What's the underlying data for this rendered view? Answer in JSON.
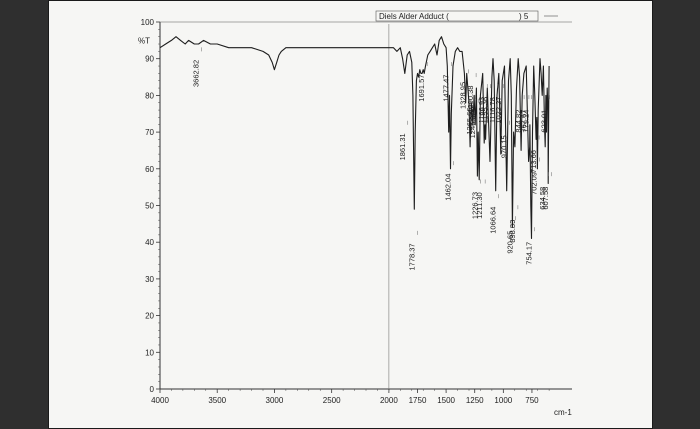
{
  "chart_data": {
    "type": "line",
    "title": "",
    "legend": {
      "label": "Diels Alder Adduct (",
      "suffix": ") 5",
      "placement": "top-right"
    },
    "xlabel": "cm-1",
    "ylabel": "%T",
    "xlim": [
      4000,
      400
    ],
    "ylim": [
      0,
      100
    ],
    "x_ticks": [
      4000,
      3500,
      3000,
      2500,
      2000,
      1750,
      1500,
      1250,
      1000,
      750
    ],
    "y_ticks": [
      100,
      90,
      80,
      70,
      60,
      50,
      40,
      30,
      20,
      10,
      0
    ],
    "x_tick_labels": [
      "4000",
      "3500",
      "3000",
      "2500",
      "2000",
      "1750",
      "1500",
      "1250",
      "1000",
      "750"
    ],
    "y_tick_labels": [
      "100",
      "90",
      "80",
      "70",
      "60",
      "50",
      "40",
      "30",
      "20",
      "10",
      "0"
    ],
    "spectrum": [
      [
        4000,
        93
      ],
      [
        3950,
        94
      ],
      [
        3900,
        95
      ],
      [
        3860,
        96
      ],
      [
        3820,
        95
      ],
      [
        3780,
        94
      ],
      [
        3750,
        95
      ],
      [
        3700,
        94
      ],
      [
        3662.82,
        94
      ],
      [
        3620,
        95
      ],
      [
        3560,
        94
      ],
      [
        3500,
        94
      ],
      [
        3400,
        93
      ],
      [
        3300,
        93
      ],
      [
        3200,
        93
      ],
      [
        3100,
        92
      ],
      [
        3050,
        91
      ],
      [
        3020,
        89
      ],
      [
        3000,
        87
      ],
      [
        2980,
        89
      ],
      [
        2960,
        91
      ],
      [
        2940,
        92
      ],
      [
        2900,
        93
      ],
      [
        2850,
        93
      ],
      [
        2800,
        93
      ],
      [
        2700,
        93
      ],
      [
        2600,
        93
      ],
      [
        2500,
        93
      ],
      [
        2400,
        93
      ],
      [
        2300,
        93
      ],
      [
        2200,
        93
      ],
      [
        2100,
        93
      ],
      [
        2050,
        93
      ],
      [
        2000,
        93
      ],
      [
        1960,
        93
      ],
      [
        1930,
        92
      ],
      [
        1900,
        93
      ],
      [
        1880,
        90
      ],
      [
        1861.31,
        86
      ],
      [
        1840,
        91
      ],
      [
        1820,
        92
      ],
      [
        1800,
        89
      ],
      [
        1790,
        80
      ],
      [
        1778.37,
        49
      ],
      [
        1770,
        70
      ],
      [
        1760,
        84
      ],
      [
        1750,
        86
      ],
      [
        1740,
        85
      ],
      [
        1730,
        87
      ],
      [
        1720,
        86
      ],
      [
        1710,
        86
      ],
      [
        1700,
        87
      ],
      [
        1691.57,
        86
      ],
      [
        1680,
        88
      ],
      [
        1660,
        91
      ],
      [
        1640,
        92
      ],
      [
        1620,
        93
      ],
      [
        1600,
        94
      ],
      [
        1580,
        91
      ],
      [
        1560,
        95
      ],
      [
        1540,
        96
      ],
      [
        1520,
        94
      ],
      [
        1500,
        93
      ],
      [
        1490,
        88
      ],
      [
        1477.47,
        70
      ],
      [
        1470,
        80
      ],
      [
        1462.04,
        60
      ],
      [
        1455,
        75
      ],
      [
        1440,
        88
      ],
      [
        1420,
        92
      ],
      [
        1400,
        93
      ],
      [
        1380,
        92
      ],
      [
        1360,
        92
      ],
      [
        1340,
        86
      ],
      [
        1328.95,
        78
      ],
      [
        1320,
        86
      ],
      [
        1300,
        78
      ],
      [
        1290.38,
        66
      ],
      [
        1280,
        78
      ],
      [
        1265.66,
        72
      ],
      [
        1255,
        80
      ],
      [
        1246.02,
        72
      ],
      [
        1235,
        82
      ],
      [
        1226.73,
        58
      ],
      [
        1220,
        70
      ],
      [
        1211.3,
        57
      ],
      [
        1200,
        80
      ],
      [
        1180,
        86
      ],
      [
        1166.93,
        67
      ],
      [
        1160,
        72
      ],
      [
        1155.36,
        68
      ],
      [
        1140,
        82
      ],
      [
        1116.78,
        62
      ],
      [
        1110,
        70
      ],
      [
        1100,
        85
      ],
      [
        1090,
        90
      ],
      [
        1080,
        84
      ],
      [
        1066.64,
        54
      ],
      [
        1055,
        80
      ],
      [
        1040,
        86
      ],
      [
        1022.27,
        64
      ],
      [
        1010,
        84
      ],
      [
        990,
        88
      ],
      [
        970.15,
        54
      ],
      [
        955,
        84
      ],
      [
        940,
        90
      ],
      [
        930,
        80
      ],
      [
        920.65,
        44
      ],
      [
        910,
        70
      ],
      [
        898.83,
        66
      ],
      [
        885,
        82
      ],
      [
        870,
        90
      ],
      [
        858,
        85
      ],
      [
        844.82,
        65
      ],
      [
        835,
        80
      ],
      [
        820,
        86
      ],
      [
        800,
        88
      ],
      [
        779.24,
        62
      ],
      [
        770,
        66
      ],
      [
        767.67,
        72
      ],
      [
        760,
        50
      ],
      [
        754.17,
        41
      ],
      [
        745,
        70
      ],
      [
        735,
        88
      ],
      [
        725,
        80
      ],
      [
        713.66,
        68
      ],
      [
        708,
        74
      ],
      [
        702.09,
        60
      ],
      [
        695,
        76
      ],
      [
        680,
        90
      ],
      [
        670,
        86
      ],
      [
        660,
        80
      ],
      [
        650,
        88
      ],
      [
        640,
        72
      ],
      [
        634.58,
        66
      ],
      [
        628,
        80
      ],
      [
        623.01,
        70
      ],
      [
        617,
        82
      ],
      [
        610,
        76
      ],
      [
        607.58,
        56
      ],
      [
        604,
        76
      ],
      [
        600,
        88
      ]
    ],
    "peaks": [
      {
        "wavenumber": 3662.82,
        "label": "3662.82"
      },
      {
        "wavenumber": 1861.31,
        "label": "1861.31"
      },
      {
        "wavenumber": 1778.37,
        "label": "1778.37"
      },
      {
        "wavenumber": 1691.57,
        "label": "1691.57"
      },
      {
        "wavenumber": 1477.47,
        "label": "1477.47"
      },
      {
        "wavenumber": 1462.04,
        "label": "1462.04"
      },
      {
        "wavenumber": 1328.95,
        "label": "1328.95"
      },
      {
        "wavenumber": 1290.38,
        "label": "1290.38"
      },
      {
        "wavenumber": 1265.66,
        "label": "1265.66"
      },
      {
        "wavenumber": 1246.02,
        "label": "1246.02"
      },
      {
        "wavenumber": 1226.73,
        "label": "1226.73"
      },
      {
        "wavenumber": 1211.3,
        "label": "1211.30"
      },
      {
        "wavenumber": 1166.93,
        "label": "1166.93"
      },
      {
        "wavenumber": 1155.36,
        "label": "1155.36"
      },
      {
        "wavenumber": 1116.78,
        "label": "1116.78"
      },
      {
        "wavenumber": 1066.64,
        "label": "1066.64"
      },
      {
        "wavenumber": 1022.27,
        "label": "1022.27"
      },
      {
        "wavenumber": 970.15,
        "label": "970.15"
      },
      {
        "wavenumber": 920.65,
        "label": "920.65"
      },
      {
        "wavenumber": 898.83,
        "label": "898.83"
      },
      {
        "wavenumber": 844.82,
        "label": "844.82"
      },
      {
        "wavenumber": 779.24,
        "label": "779.24"
      },
      {
        "wavenumber": 767.67,
        "label": "767.67"
      },
      {
        "wavenumber": 754.17,
        "label": "754.17"
      },
      {
        "wavenumber": 713.66,
        "label": "713.66"
      },
      {
        "wavenumber": 702.09,
        "label": "702.09"
      },
      {
        "wavenumber": 634.58,
        "label": "634.58"
      },
      {
        "wavenumber": 623.01,
        "label": "623.01"
      },
      {
        "wavenumber": 607.58,
        "label": "607.58"
      }
    ],
    "colors": {
      "line": "#1e1e1e",
      "axis": "#333333",
      "paper": "#f6f6f4"
    }
  }
}
